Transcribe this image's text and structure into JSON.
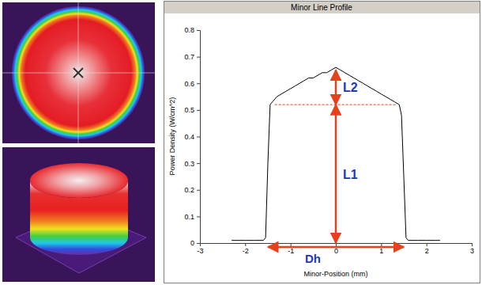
{
  "chart_data": {
    "type": "line",
    "title": "Minor Line Profile",
    "x_label": "Minor-Position (mm)",
    "y_label": "Power Density (W/cm^2)",
    "x": [
      -2.3,
      -2.2,
      -2.0,
      -1.8,
      -1.6,
      -1.55,
      -1.5,
      -1.45,
      -1.4,
      -1.3,
      -1.2,
      -1.1,
      -1.0,
      -0.9,
      -0.8,
      -0.7,
      -0.6,
      -0.5,
      -0.4,
      -0.3,
      -0.2,
      -0.1,
      0,
      0.1,
      0.2,
      0.3,
      0.4,
      0.5,
      0.6,
      0.7,
      0.8,
      0.9,
      1.0,
      1.1,
      1.2,
      1.3,
      1.4,
      1.45,
      1.5,
      1.55,
      1.6,
      1.8,
      2.0,
      2.2,
      2.3
    ],
    "values": [
      0.01,
      0.01,
      0.01,
      0.01,
      0.01,
      0.02,
      0.3,
      0.52,
      0.53,
      0.55,
      0.56,
      0.57,
      0.58,
      0.59,
      0.6,
      0.61,
      0.62,
      0.62,
      0.63,
      0.64,
      0.64,
      0.65,
      0.66,
      0.65,
      0.64,
      0.63,
      0.62,
      0.61,
      0.6,
      0.59,
      0.58,
      0.57,
      0.56,
      0.55,
      0.54,
      0.53,
      0.52,
      0.48,
      0.25,
      0.02,
      0.01,
      0.01,
      0.01,
      0.01,
      0.01
    ],
    "color": "#000000",
    "xlim": [
      -3,
      3
    ],
    "ylim": [
      0,
      0.8
    ],
    "xticks": [
      -3,
      -2,
      -1,
      0,
      1,
      2,
      3
    ],
    "yticks": [
      0,
      0.1,
      0.2,
      0.3,
      0.4,
      0.5,
      0.6,
      0.7,
      0.8
    ],
    "grid": false,
    "annotations": [
      {
        "text": "L1",
        "x": 0,
        "y": [
          0,
          0.52
        ]
      },
      {
        "text": "L2",
        "x": 0,
        "y": [
          0.52,
          0.65
        ]
      },
      {
        "text": "Dh",
        "x": [
          -1.5,
          1.5
        ],
        "y": 0
      },
      {
        "x": [
          -1.35,
          1.35
        ],
        "y": 0.52,
        "line_style": "dashed"
      }
    ]
  }
}
